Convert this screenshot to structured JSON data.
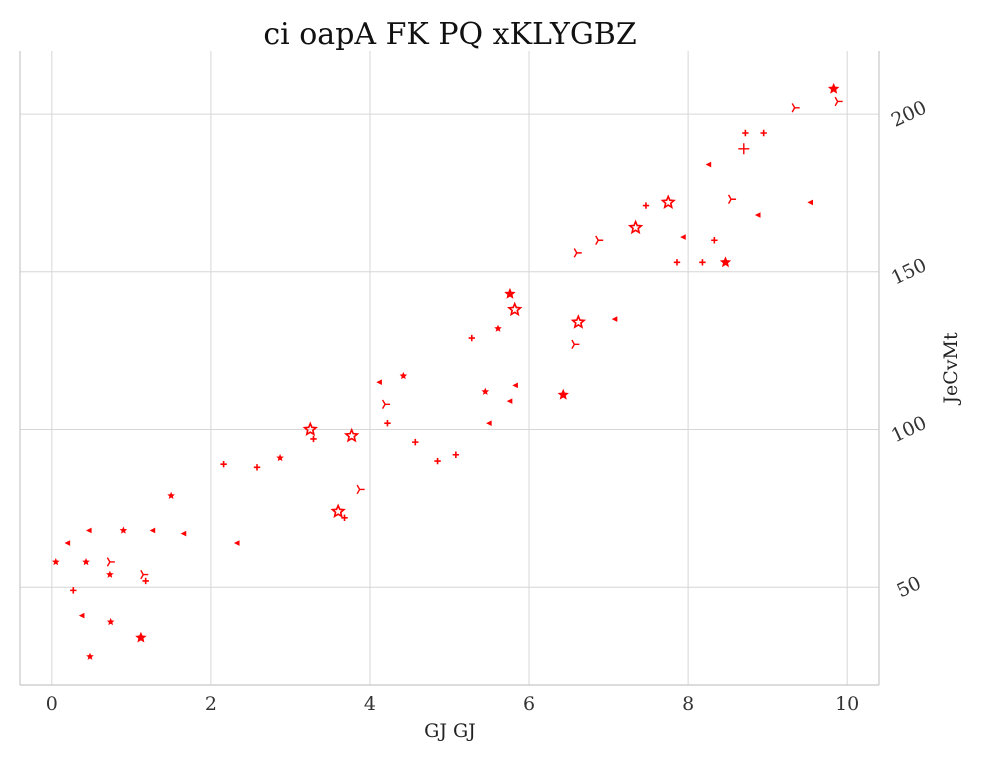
{
  "chart_data": {
    "type": "scatter",
    "title": "ci oapA FK PQ xKLYGBZ",
    "xlabel": "GJ GJ",
    "ylabel": "JeCvMt",
    "xlim": [
      -0.4,
      10.4
    ],
    "ylim": [
      19,
      220
    ],
    "xticks": [
      0,
      2,
      4,
      6,
      8,
      10
    ],
    "yticks": [
      50,
      100,
      150,
      200
    ],
    "y_axis_side": "right",
    "grid": true,
    "color": "#ff0000",
    "points": [
      {
        "x": 0.05,
        "y": 58,
        "m": "star"
      },
      {
        "x": 0.2,
        "y": 64,
        "m": "tri"
      },
      {
        "x": 0.27,
        "y": 49,
        "m": "plus"
      },
      {
        "x": 0.38,
        "y": 41,
        "m": "tri"
      },
      {
        "x": 0.43,
        "y": 58,
        "m": "star"
      },
      {
        "x": 0.48,
        "y": 28,
        "m": "star"
      },
      {
        "x": 0.47,
        "y": 68,
        "m": "tri"
      },
      {
        "x": 0.73,
        "y": 58,
        "m": "y"
      },
      {
        "x": 0.73,
        "y": 54,
        "m": "star"
      },
      {
        "x": 0.74,
        "y": 39,
        "m": "star"
      },
      {
        "x": 0.9,
        "y": 68,
        "m": "star"
      },
      {
        "x": 1.12,
        "y": 34,
        "m": "star-big"
      },
      {
        "x": 1.15,
        "y": 54,
        "m": "y"
      },
      {
        "x": 1.18,
        "y": 52,
        "m": "plus"
      },
      {
        "x": 1.27,
        "y": 68,
        "m": "tri"
      },
      {
        "x": 1.5,
        "y": 79,
        "m": "star"
      },
      {
        "x": 1.66,
        "y": 67,
        "m": "tri"
      },
      {
        "x": 2.16,
        "y": 89,
        "m": "plus"
      },
      {
        "x": 2.33,
        "y": 64,
        "m": "tri"
      },
      {
        "x": 2.58,
        "y": 88,
        "m": "plus"
      },
      {
        "x": 2.87,
        "y": 91,
        "m": "star"
      },
      {
        "x": 3.25,
        "y": 100,
        "m": "star-open"
      },
      {
        "x": 3.29,
        "y": 97,
        "m": "plus"
      },
      {
        "x": 3.6,
        "y": 74,
        "m": "star-open"
      },
      {
        "x": 3.68,
        "y": 72,
        "m": "plus"
      },
      {
        "x": 3.77,
        "y": 98,
        "m": "star-open"
      },
      {
        "x": 3.87,
        "y": 81,
        "m": "y"
      },
      {
        "x": 4.12,
        "y": 115,
        "m": "tri"
      },
      {
        "x": 4.19,
        "y": 108,
        "m": "y"
      },
      {
        "x": 4.22,
        "y": 102,
        "m": "plus"
      },
      {
        "x": 4.42,
        "y": 117,
        "m": "star"
      },
      {
        "x": 4.57,
        "y": 96,
        "m": "plus"
      },
      {
        "x": 4.85,
        "y": 90,
        "m": "plus"
      },
      {
        "x": 5.08,
        "y": 92,
        "m": "plus"
      },
      {
        "x": 5.28,
        "y": 129,
        "m": "plus"
      },
      {
        "x": 5.45,
        "y": 112,
        "m": "star"
      },
      {
        "x": 5.5,
        "y": 102,
        "m": "tri"
      },
      {
        "x": 5.61,
        "y": 132,
        "m": "star"
      },
      {
        "x": 5.76,
        "y": 143,
        "m": "star-big"
      },
      {
        "x": 5.76,
        "y": 109,
        "m": "tri"
      },
      {
        "x": 5.82,
        "y": 138,
        "m": "star-open"
      },
      {
        "x": 5.83,
        "y": 114,
        "m": "tri"
      },
      {
        "x": 6.43,
        "y": 111,
        "m": "star-big"
      },
      {
        "x": 6.57,
        "y": 127,
        "m": "y"
      },
      {
        "x": 6.6,
        "y": 156,
        "m": "y"
      },
      {
        "x": 6.62,
        "y": 134,
        "m": "star-open"
      },
      {
        "x": 6.87,
        "y": 160,
        "m": "y"
      },
      {
        "x": 7.08,
        "y": 135,
        "m": "tri"
      },
      {
        "x": 7.34,
        "y": 164,
        "m": "star-open"
      },
      {
        "x": 7.47,
        "y": 171,
        "m": "plus"
      },
      {
        "x": 7.75,
        "y": 172,
        "m": "star-open"
      },
      {
        "x": 7.86,
        "y": 153,
        "m": "plus"
      },
      {
        "x": 7.94,
        "y": 161,
        "m": "tri"
      },
      {
        "x": 8.18,
        "y": 153,
        "m": "plus"
      },
      {
        "x": 8.26,
        "y": 184,
        "m": "tri"
      },
      {
        "x": 8.33,
        "y": 160,
        "m": "plus"
      },
      {
        "x": 8.47,
        "y": 153,
        "m": "star-big"
      },
      {
        "x": 8.54,
        "y": 173,
        "m": "y"
      },
      {
        "x": 8.7,
        "y": 189,
        "m": "plus-big"
      },
      {
        "x": 8.72,
        "y": 194,
        "m": "plus"
      },
      {
        "x": 8.88,
        "y": 168,
        "m": "tri"
      },
      {
        "x": 8.95,
        "y": 194,
        "m": "plus"
      },
      {
        "x": 9.34,
        "y": 202,
        "m": "y"
      },
      {
        "x": 9.54,
        "y": 172,
        "m": "tri"
      },
      {
        "x": 9.83,
        "y": 208,
        "m": "star-big"
      },
      {
        "x": 9.88,
        "y": 204,
        "m": "y"
      }
    ]
  }
}
